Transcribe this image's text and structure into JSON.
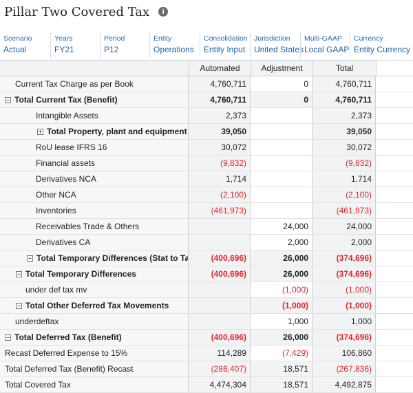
{
  "header": {
    "title": "Pillar Two Covered Tax",
    "info_icon": "info-icon"
  },
  "pov": [
    {
      "label": "Scenario",
      "value": "Actual"
    },
    {
      "label": "Years",
      "value": "FY21"
    },
    {
      "label": "Period",
      "value": "P12"
    },
    {
      "label": "Entity",
      "value": "Operations"
    },
    {
      "label": "Consolidation",
      "value": "Entity Input"
    },
    {
      "label": "Jurisdiction",
      "value": "United States"
    },
    {
      "label": "Multi-GAAP",
      "value": "Local GAAP"
    },
    {
      "label": "Currency",
      "value": "Entity Currency"
    }
  ],
  "columns": [
    "Automated",
    "Adjustment",
    "Total"
  ],
  "rows": [
    {
      "label": "Current Tax Charge as per Book",
      "automated": "4,760,711",
      "adjustment": "0",
      "total": "4,760,711"
    },
    {
      "label": "Total Current Tax (Benefit)",
      "automated": "4,760,711",
      "adjustment": "0",
      "total": "4,760,711"
    },
    {
      "label": "Intangible Assets",
      "automated": "2,373",
      "adjustment": "",
      "total": "2,373"
    },
    {
      "label": "Total Property, plant and equipment",
      "automated": "39,050",
      "adjustment": "",
      "total": "39,050"
    },
    {
      "label": "RoU lease IFRS 16",
      "automated": "30,072",
      "adjustment": "",
      "total": "30,072"
    },
    {
      "label": "Financial assets",
      "automated": "(9,832)",
      "adjustment": "",
      "total": "(9,832)"
    },
    {
      "label": "Derivatives NCA",
      "automated": "1,714",
      "adjustment": "",
      "total": "1,714"
    },
    {
      "label": "Other NCA",
      "automated": "(2,100)",
      "adjustment": "",
      "total": "(2,100)"
    },
    {
      "label": "Inventories",
      "automated": "(461,973)",
      "adjustment": "",
      "total": "(461,973)"
    },
    {
      "label": "Receivables Trade & Others",
      "automated": "",
      "adjustment": "24,000",
      "total": "24,000"
    },
    {
      "label": "Derivatives CA",
      "automated": "",
      "adjustment": "2,000",
      "total": "2,000"
    },
    {
      "label": "Total Temporary Differences (Stat to Tax)",
      "automated": "(400,696)",
      "adjustment": "26,000",
      "total": "(374,696)"
    },
    {
      "label": "Total Temporary Differences",
      "automated": "(400,696)",
      "adjustment": "26,000",
      "total": "(374,696)"
    },
    {
      "label": "under def tax mv",
      "automated": "",
      "adjustment": "(1,000)",
      "total": "(1,000)"
    },
    {
      "label": "Total Other Deferred Tax Movements",
      "automated": "",
      "adjustment": "(1,000)",
      "total": "(1,000)"
    },
    {
      "label": "underdeftax",
      "automated": "",
      "adjustment": "1,000",
      "total": "1,000"
    },
    {
      "label": "Total Deferred Tax (Benefit)",
      "automated": "(400,696)",
      "adjustment": "26,000",
      "total": "(374,696)"
    },
    {
      "label": "Recast Deferred Expense to 15%",
      "automated": "114,289",
      "adjustment": "(7,429)",
      "total": "106,860"
    },
    {
      "label": "Total Deferred Tax (Benefit) Recast",
      "automated": "(286,407)",
      "adjustment": "18,571",
      "total": "(267,836)"
    },
    {
      "label": "Total Covered Tax",
      "automated": "4,474,304",
      "adjustment": "18,571",
      "total": "4,492,875"
    }
  ]
}
